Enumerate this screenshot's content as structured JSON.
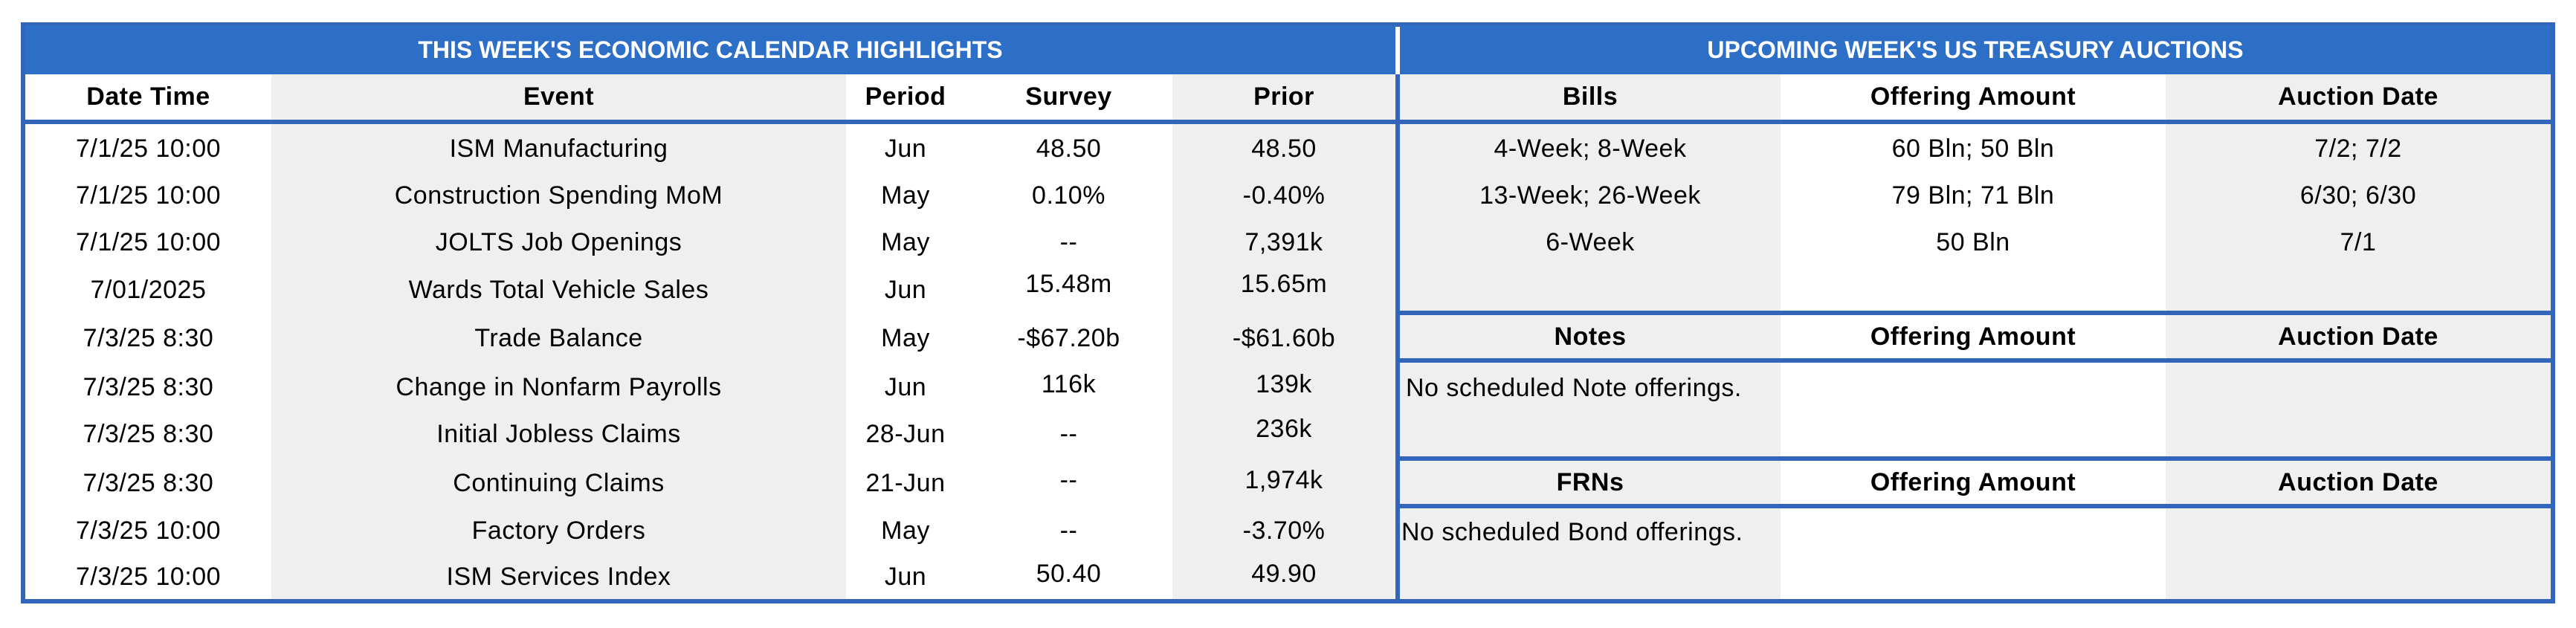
{
  "left_title": "THIS WEEK'S ECONOMIC CALENDAR HIGHLIGHTS",
  "right_title": "UPCOMING WEEK'S US TREASURY AUCTIONS",
  "calendar": {
    "headers": {
      "datetime": "Date Time",
      "event": "Event",
      "period": "Period",
      "survey": "Survey",
      "prior": "Prior"
    },
    "rows": [
      {
        "datetime": "7/1/25 10:00",
        "event": "ISM Manufacturing",
        "period": "Jun",
        "survey": "48.50",
        "prior": "48.50"
      },
      {
        "datetime": "7/1/25 10:00",
        "event": "Construction Spending MoM",
        "period": "May",
        "survey": "0.10%",
        "prior": "-0.40%"
      },
      {
        "datetime": "7/1/25 10:00",
        "event": "JOLTS Job Openings",
        "period": "May",
        "survey": "--",
        "prior": "7,391k"
      },
      {
        "datetime": "7/01/2025",
        "event": "Wards Total Vehicle Sales",
        "period": "Jun",
        "survey": "15.48m",
        "prior": "15.65m"
      },
      {
        "datetime": "7/3/25 8:30",
        "event": "Trade Balance",
        "period": "May",
        "survey": "-$67.20b",
        "prior": "-$61.60b"
      },
      {
        "datetime": "7/3/25 8:30",
        "event": "Change in Nonfarm Payrolls",
        "period": "Jun",
        "survey": "116k",
        "prior": "139k"
      },
      {
        "datetime": "7/3/25 8:30",
        "event": "Initial Jobless Claims",
        "period": "28-Jun",
        "survey": "--",
        "prior": "236k"
      },
      {
        "datetime": "7/3/25 8:30",
        "event": "Continuing Claims",
        "period": "21-Jun",
        "survey": "--",
        "prior": "1,974k"
      },
      {
        "datetime": "7/3/25 10:00",
        "event": "Factory Orders",
        "period": "May",
        "survey": "--",
        "prior": "-3.70%"
      },
      {
        "datetime": "7/3/25 10:00",
        "event": "ISM Services Index",
        "period": "Jun",
        "survey": "50.40",
        "prior": "49.90"
      }
    ]
  },
  "bills": {
    "headers": {
      "name": "Bills",
      "amount": "Offering Amount",
      "date": "Auction Date"
    },
    "rows": [
      {
        "name": "4-Week; 8-Week",
        "amount": "60 Bln; 50 Bln",
        "date": "7/2; 7/2"
      },
      {
        "name": "13-Week; 26-Week",
        "amount": "79 Bln; 71 Bln",
        "date": "6/30; 6/30"
      },
      {
        "name": "6-Week",
        "amount": "50 Bln",
        "date": "7/1"
      }
    ]
  },
  "notes": {
    "headers": {
      "name": "Notes",
      "amount": "Offering Amount",
      "date": "Auction Date"
    },
    "message": "No scheduled Note offerings."
  },
  "frns": {
    "headers": {
      "name": "FRNs",
      "amount": "Offering Amount",
      "date": "Auction Date"
    },
    "message": "No scheduled Bond offerings."
  },
  "colors": {
    "border": "#3366bb",
    "header_bg": "#2d6fc7",
    "stripe": "#efefef"
  }
}
